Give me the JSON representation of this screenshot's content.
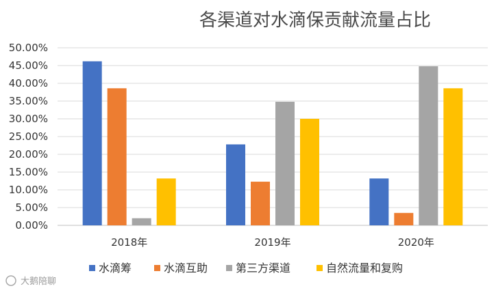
{
  "chart_data": {
    "type": "bar",
    "title": "各渠道对水滴保贡献流量占比",
    "categories": [
      "2018年",
      "2019年",
      "2020年"
    ],
    "y_ticks": [
      "0.00%",
      "5.00%",
      "10.00%",
      "15.00%",
      "20.00%",
      "25.00%",
      "30.00%",
      "35.00%",
      "40.00%",
      "45.00%",
      "50.00%"
    ],
    "ylim": [
      0,
      50
    ],
    "grid": true,
    "legend_position": "bottom",
    "series": [
      {
        "name": "水滴筹",
        "color": "#4472C4",
        "values": [
          46.2,
          22.8,
          13.2
        ]
      },
      {
        "name": "水滴互助",
        "color": "#ED7D31",
        "values": [
          38.6,
          12.3,
          3.5
        ]
      },
      {
        "name": "第三方渠道",
        "color": "#A5A5A5",
        "values": [
          2.0,
          34.8,
          44.8
        ]
      },
      {
        "name": "自然流量和复购",
        "color": "#FFC000",
        "values": [
          13.2,
          30.0,
          38.6
        ]
      }
    ]
  },
  "watermark": {
    "text": "大鹅陪聊",
    "icon": "brand-logo-icon"
  }
}
